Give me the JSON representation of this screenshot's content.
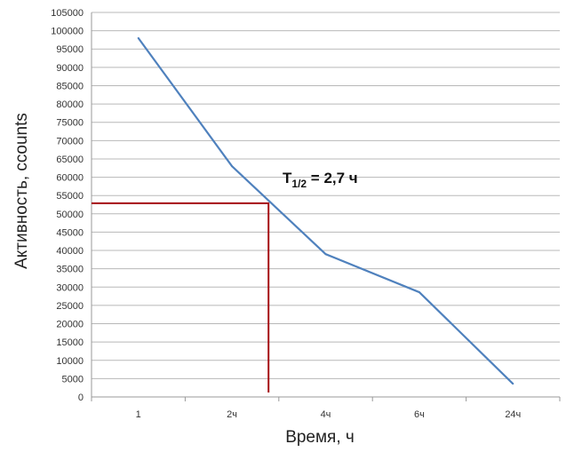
{
  "chart_data": {
    "type": "line",
    "title": "",
    "xlabel": "Время, ч",
    "ylabel": "Активность, ccounts",
    "categories": [
      "1",
      "2ч",
      "4ч",
      "6ч",
      "24ч"
    ],
    "series": [
      {
        "values": [
          98000,
          63000,
          39000,
          28600,
          3600
        ],
        "color": "#4f81bd"
      }
    ],
    "ylim": [
      0,
      105000
    ],
    "y_ticks": [
      0,
      5000,
      10000,
      15000,
      20000,
      25000,
      30000,
      35000,
      40000,
      45000,
      50000,
      55000,
      60000,
      65000,
      70000,
      75000,
      80000,
      85000,
      90000,
      95000,
      100000,
      105000
    ],
    "grid": true,
    "legend": "none",
    "half_life_marker": {
      "y": 52900,
      "x_category_position": 1.39,
      "color": "#a50f15"
    },
    "annotation": {
      "prefix": "T",
      "subscript": "1/2",
      "suffix": " = 2,7 ч"
    }
  }
}
